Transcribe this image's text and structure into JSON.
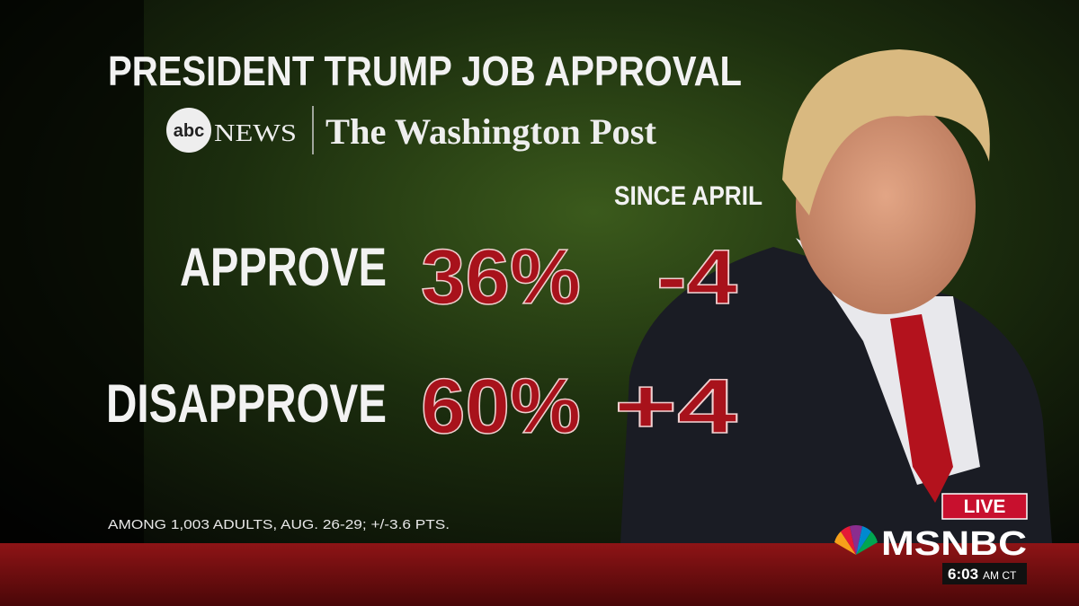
{
  "header": {
    "title": "PRESIDENT TRUMP JOB APPROVAL",
    "sources": {
      "abc_mark": "abc",
      "abc_name": "NEWS",
      "post": "The Washington Post"
    }
  },
  "table": {
    "column_header": "SINCE APRIL",
    "rows": [
      [
        "APPROVE",
        "36%",
        "-4"
      ],
      [
        "DISAPPROVE",
        "60%",
        "+4"
      ]
    ]
  },
  "footnote": "AMONG 1,003 ADULTS, AUG. 26-29; +/-3.6 PTS.",
  "broadcast": {
    "live": "LIVE",
    "network": "MSNBC",
    "time": "6:03",
    "time_zone": "AM CT"
  }
}
